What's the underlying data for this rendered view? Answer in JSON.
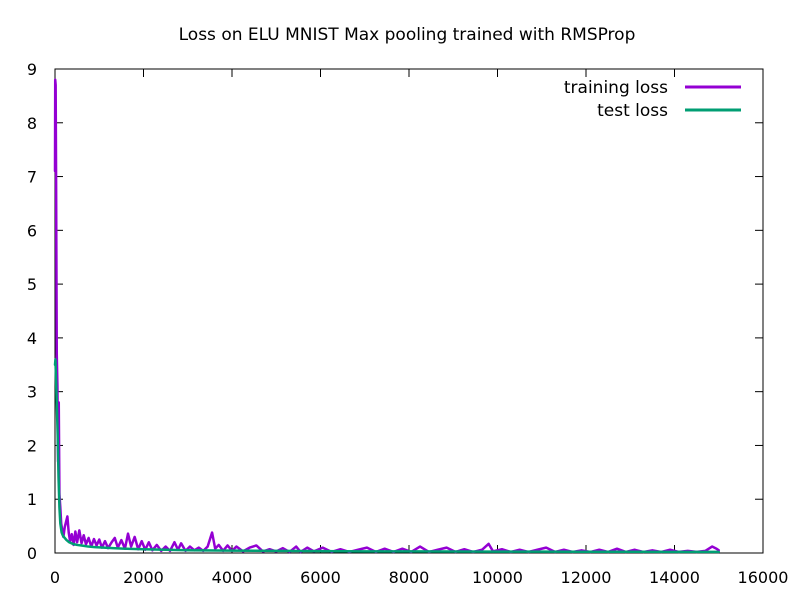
{
  "chart_data": {
    "type": "line",
    "title": "Loss on ELU MNIST Max pooling trained with RMSProp",
    "xlabel": "",
    "ylabel": "",
    "xlim": [
      0,
      16000
    ],
    "ylim": [
      0,
      9
    ],
    "x_ticks": [
      "0",
      "2000",
      "4000",
      "6000",
      "8000",
      "10000",
      "12000",
      "14000",
      "16000"
    ],
    "y_ticks": [
      "0",
      "1",
      "2",
      "3",
      "4",
      "5",
      "6",
      "7",
      "8",
      "9"
    ],
    "grid": false,
    "legend_position": "top-right",
    "series": [
      {
        "name": "training loss",
        "color": "#9400d3",
        "points": [
          [
            0,
            7.1
          ],
          [
            5,
            8.8
          ],
          [
            15,
            8.7
          ],
          [
            25,
            6.9
          ],
          [
            40,
            3.7
          ],
          [
            55,
            3.1
          ],
          [
            70,
            1.7
          ],
          [
            85,
            2.8
          ],
          [
            100,
            1.1
          ],
          [
            120,
            0.85
          ],
          [
            140,
            0.55
          ],
          [
            165,
            0.42
          ],
          [
            190,
            0.3
          ],
          [
            220,
            0.48
          ],
          [
            250,
            0.58
          ],
          [
            280,
            0.68
          ],
          [
            310,
            0.38
          ],
          [
            340,
            0.22
          ],
          [
            380,
            0.35
          ],
          [
            420,
            0.15
          ],
          [
            460,
            0.4
          ],
          [
            500,
            0.2
          ],
          [
            550,
            0.42
          ],
          [
            600,
            0.18
          ],
          [
            650,
            0.33
          ],
          [
            700,
            0.16
          ],
          [
            760,
            0.28
          ],
          [
            820,
            0.12
          ],
          [
            880,
            0.26
          ],
          [
            940,
            0.14
          ],
          [
            1000,
            0.25
          ],
          [
            1060,
            0.1
          ],
          [
            1130,
            0.22
          ],
          [
            1200,
            0.09
          ],
          [
            1280,
            0.2
          ],
          [
            1350,
            0.28
          ],
          [
            1420,
            0.1
          ],
          [
            1500,
            0.24
          ],
          [
            1580,
            0.08
          ],
          [
            1650,
            0.36
          ],
          [
            1720,
            0.12
          ],
          [
            1800,
            0.3
          ],
          [
            1880,
            0.07
          ],
          [
            1960,
            0.22
          ],
          [
            2040,
            0.06
          ],
          [
            2120,
            0.2
          ],
          [
            2200,
            0.05
          ],
          [
            2300,
            0.15
          ],
          [
            2400,
            0.04
          ],
          [
            2500,
            0.12
          ],
          [
            2600,
            0.04
          ],
          [
            2700,
            0.2
          ],
          [
            2780,
            0.06
          ],
          [
            2850,
            0.18
          ],
          [
            2950,
            0.04
          ],
          [
            3050,
            0.12
          ],
          [
            3150,
            0.05
          ],
          [
            3250,
            0.1
          ],
          [
            3350,
            0.04
          ],
          [
            3450,
            0.12
          ],
          [
            3550,
            0.38
          ],
          [
            3620,
            0.08
          ],
          [
            3700,
            0.15
          ],
          [
            3800,
            0.04
          ],
          [
            3900,
            0.14
          ],
          [
            4000,
            0.04
          ],
          [
            4100,
            0.12
          ],
          [
            4250,
            0.03
          ],
          [
            4400,
            0.1
          ],
          [
            4550,
            0.14
          ],
          [
            4700,
            0.03
          ],
          [
            4850,
            0.07
          ],
          [
            5000,
            0.03
          ],
          [
            5150,
            0.09
          ],
          [
            5300,
            0.02
          ],
          [
            5450,
            0.12
          ],
          [
            5550,
            0.02
          ],
          [
            5700,
            0.1
          ],
          [
            5850,
            0.03
          ],
          [
            6050,
            0.1
          ],
          [
            6250,
            0.02
          ],
          [
            6450,
            0.07
          ],
          [
            6650,
            0.02
          ],
          [
            6850,
            0.06
          ],
          [
            7050,
            0.1
          ],
          [
            7250,
            0.02
          ],
          [
            7450,
            0.08
          ],
          [
            7650,
            0.02
          ],
          [
            7850,
            0.08
          ],
          [
            8050,
            0.02
          ],
          [
            8250,
            0.12
          ],
          [
            8450,
            0.02
          ],
          [
            8650,
            0.06
          ],
          [
            8850,
            0.1
          ],
          [
            9050,
            0.02
          ],
          [
            9250,
            0.07
          ],
          [
            9450,
            0.02
          ],
          [
            9650,
            0.06
          ],
          [
            9800,
            0.17
          ],
          [
            9900,
            0.03
          ],
          [
            10100,
            0.07
          ],
          [
            10300,
            0.02
          ],
          [
            10500,
            0.06
          ],
          [
            10700,
            0.02
          ],
          [
            10900,
            0.06
          ],
          [
            11100,
            0.1
          ],
          [
            11300,
            0.02
          ],
          [
            11500,
            0.06
          ],
          [
            11700,
            0.02
          ],
          [
            11900,
            0.05
          ],
          [
            12100,
            0.02
          ],
          [
            12300,
            0.06
          ],
          [
            12500,
            0.02
          ],
          [
            12700,
            0.08
          ],
          [
            12900,
            0.02
          ],
          [
            13100,
            0.06
          ],
          [
            13300,
            0.02
          ],
          [
            13500,
            0.05
          ],
          [
            13700,
            0.02
          ],
          [
            13900,
            0.06
          ],
          [
            14100,
            0.02
          ],
          [
            14300,
            0.04
          ],
          [
            14500,
            0.02
          ],
          [
            14700,
            0.04
          ],
          [
            14850,
            0.12
          ],
          [
            14950,
            0.08
          ],
          [
            15000,
            0.05
          ]
        ]
      },
      {
        "name": "test loss",
        "color": "#009e73",
        "points": [
          [
            0,
            3.5
          ],
          [
            10,
            3.6
          ],
          [
            20,
            3.3
          ],
          [
            40,
            2.8
          ],
          [
            60,
            2.2
          ],
          [
            80,
            1.4
          ],
          [
            100,
            0.85
          ],
          [
            120,
            0.55
          ],
          [
            150,
            0.38
          ],
          [
            180,
            0.32
          ],
          [
            220,
            0.28
          ],
          [
            260,
            0.24
          ],
          [
            320,
            0.2
          ],
          [
            400,
            0.17
          ],
          [
            500,
            0.15
          ],
          [
            600,
            0.14
          ],
          [
            750,
            0.12
          ],
          [
            900,
            0.11
          ],
          [
            1100,
            0.1
          ],
          [
            1300,
            0.09
          ],
          [
            1600,
            0.08
          ],
          [
            2000,
            0.07
          ],
          [
            2500,
            0.06
          ],
          [
            3000,
            0.05
          ],
          [
            4000,
            0.045
          ],
          [
            5000,
            0.04
          ],
          [
            6000,
            0.035
          ],
          [
            7000,
            0.03
          ],
          [
            8000,
            0.03
          ],
          [
            9000,
            0.028
          ],
          [
            10000,
            0.026
          ],
          [
            11000,
            0.025
          ],
          [
            12000,
            0.024
          ],
          [
            13000,
            0.023
          ],
          [
            14000,
            0.022
          ],
          [
            15000,
            0.022
          ]
        ]
      }
    ]
  }
}
